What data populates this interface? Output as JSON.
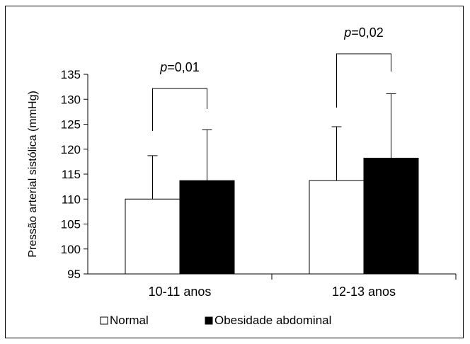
{
  "chart_data": {
    "type": "bar",
    "title": "",
    "xlabel": "",
    "ylabel": "Pressão arterial sistólica (mmHg)",
    "ylim": [
      95,
      135
    ],
    "yticks": [
      95,
      100,
      105,
      110,
      115,
      120,
      125,
      130,
      135
    ],
    "categories": [
      "10-11 anos",
      "12-13 anos"
    ],
    "series": [
      {
        "name": "Normal",
        "color": "#ffffff",
        "values": [
          110.0,
          113.7
        ],
        "error": [
          8.7,
          10.8
        ]
      },
      {
        "name": "Obesidade abdominal",
        "color": "#000000",
        "values": [
          113.7,
          118.2
        ],
        "error": [
          10.2,
          12.9
        ]
      }
    ],
    "grid": false,
    "legend_position": "bottom-left",
    "annotations": [
      {
        "p_label": "p",
        "value_text": "=0,01",
        "category": "10-11 anos"
      },
      {
        "p_label": "p",
        "value_text": "=0,02",
        "category": "12-13 anos"
      }
    ]
  }
}
